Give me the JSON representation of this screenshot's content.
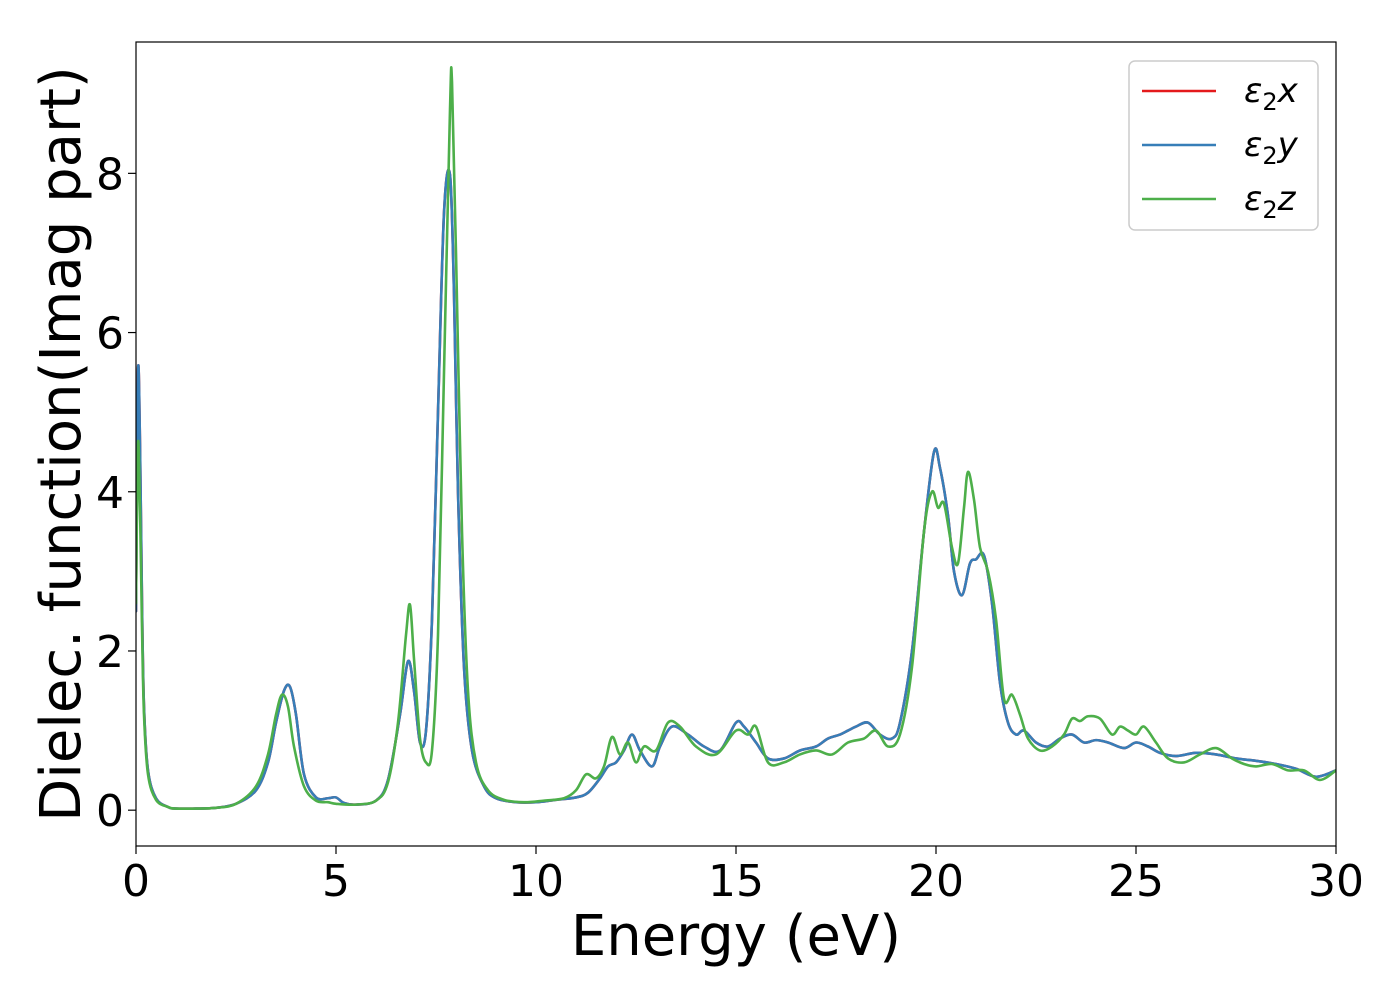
{
  "chart_data": {
    "type": "line",
    "xlabel": "Energy (eV)",
    "ylabel": "Dielec. function(Imag part)",
    "xlim": [
      0,
      30
    ],
    "ylim": [
      -0.45,
      9.65
    ],
    "xticks": [
      0,
      5,
      10,
      15,
      20,
      25,
      30
    ],
    "yticks": [
      0,
      2,
      4,
      6,
      8
    ],
    "grid": false,
    "legend_position": "top-right",
    "series": [
      {
        "name": "ε2x",
        "legend_main": "ε",
        "legend_sub": "2",
        "legend_axis": "x",
        "color": "#e41a1c",
        "x": [
          0.0,
          0.05,
          0.1,
          0.15,
          0.2,
          0.3,
          0.5,
          0.8,
          1.0,
          1.5,
          2.0,
          2.5,
          3.0,
          3.3,
          3.5,
          3.7,
          3.85,
          4.0,
          4.2,
          4.5,
          4.8,
          5.0,
          5.2,
          5.5,
          6.0,
          6.3,
          6.6,
          6.8,
          6.95,
          7.1,
          7.25,
          7.4,
          7.55,
          7.7,
          7.85,
          7.95,
          8.05,
          8.2,
          8.4,
          8.7,
          9.0,
          9.5,
          10.0,
          10.5,
          11.0,
          11.3,
          11.6,
          11.8,
          12.0,
          12.2,
          12.4,
          12.6,
          12.9,
          13.1,
          13.4,
          13.8,
          14.2,
          14.6,
          15.0,
          15.2,
          15.5,
          15.8,
          16.2,
          16.6,
          17.0,
          17.3,
          17.6,
          17.8,
          18.0,
          18.3,
          18.6,
          18.9,
          19.1,
          19.4,
          19.7,
          19.95,
          20.1,
          20.3,
          20.45,
          20.65,
          20.85,
          21.0,
          21.2,
          21.4,
          21.6,
          21.8,
          22.0,
          22.2,
          22.5,
          22.8,
          23.1,
          23.4,
          23.7,
          24.0,
          24.3,
          24.7,
          25.0,
          25.3,
          25.6,
          26.0,
          26.5,
          27.0,
          27.5,
          28.0,
          28.5,
          29.0,
          29.5,
          30.0
        ],
        "y": [
          2.5,
          5.5,
          4.6,
          2.6,
          1.3,
          0.5,
          0.15,
          0.04,
          0.02,
          0.02,
          0.03,
          0.08,
          0.25,
          0.6,
          1.1,
          1.5,
          1.55,
          1.2,
          0.45,
          0.16,
          0.15,
          0.16,
          0.09,
          0.07,
          0.12,
          0.38,
          1.2,
          1.87,
          1.5,
          0.85,
          1.0,
          2.4,
          5.0,
          7.5,
          7.98,
          6.5,
          4.0,
          1.8,
          0.75,
          0.3,
          0.15,
          0.1,
          0.1,
          0.13,
          0.16,
          0.22,
          0.4,
          0.55,
          0.6,
          0.75,
          0.95,
          0.75,
          0.55,
          0.8,
          1.05,
          0.95,
          0.8,
          0.75,
          1.1,
          1.05,
          0.85,
          0.65,
          0.65,
          0.75,
          0.8,
          0.9,
          0.95,
          1.0,
          1.05,
          1.1,
          0.95,
          0.9,
          1.1,
          2.0,
          3.5,
          4.5,
          4.3,
          3.7,
          3.0,
          2.7,
          3.1,
          3.15,
          3.2,
          2.6,
          1.6,
          1.1,
          0.95,
          1.0,
          0.85,
          0.8,
          0.9,
          0.95,
          0.85,
          0.88,
          0.85,
          0.78,
          0.85,
          0.8,
          0.72,
          0.68,
          0.72,
          0.7,
          0.65,
          0.62,
          0.58,
          0.52,
          0.42,
          0.5
        ]
      },
      {
        "name": "ε2y",
        "legend_main": "ε",
        "legend_sub": "2",
        "legend_axis": "y",
        "color": "#377eb8",
        "x": [
          0.0,
          0.05,
          0.1,
          0.15,
          0.2,
          0.3,
          0.5,
          0.8,
          1.0,
          1.5,
          2.0,
          2.5,
          3.0,
          3.3,
          3.5,
          3.7,
          3.85,
          4.0,
          4.2,
          4.5,
          4.8,
          5.0,
          5.2,
          5.5,
          6.0,
          6.3,
          6.6,
          6.8,
          6.95,
          7.1,
          7.25,
          7.4,
          7.55,
          7.7,
          7.85,
          7.95,
          8.05,
          8.2,
          8.4,
          8.7,
          9.0,
          9.5,
          10.0,
          10.5,
          11.0,
          11.3,
          11.6,
          11.8,
          12.0,
          12.2,
          12.4,
          12.6,
          12.9,
          13.1,
          13.4,
          13.8,
          14.2,
          14.6,
          15.0,
          15.2,
          15.5,
          15.8,
          16.2,
          16.6,
          17.0,
          17.3,
          17.6,
          17.8,
          18.0,
          18.3,
          18.6,
          18.9,
          19.1,
          19.4,
          19.7,
          19.95,
          20.1,
          20.3,
          20.45,
          20.65,
          20.85,
          21.0,
          21.2,
          21.4,
          21.6,
          21.8,
          22.0,
          22.2,
          22.5,
          22.8,
          23.1,
          23.4,
          23.7,
          24.0,
          24.3,
          24.7,
          25.0,
          25.3,
          25.6,
          26.0,
          26.5,
          27.0,
          27.5,
          28.0,
          28.5,
          29.0,
          29.5,
          30.0
        ],
        "y": [
          2.5,
          5.5,
          4.6,
          2.6,
          1.3,
          0.5,
          0.15,
          0.04,
          0.02,
          0.02,
          0.03,
          0.08,
          0.25,
          0.6,
          1.1,
          1.5,
          1.55,
          1.2,
          0.45,
          0.16,
          0.15,
          0.16,
          0.09,
          0.07,
          0.12,
          0.38,
          1.2,
          1.87,
          1.5,
          0.85,
          1.0,
          2.4,
          5.0,
          7.5,
          7.98,
          6.5,
          4.0,
          1.8,
          0.75,
          0.3,
          0.15,
          0.1,
          0.1,
          0.13,
          0.16,
          0.22,
          0.4,
          0.55,
          0.6,
          0.75,
          0.95,
          0.75,
          0.55,
          0.8,
          1.05,
          0.95,
          0.8,
          0.75,
          1.1,
          1.05,
          0.85,
          0.65,
          0.65,
          0.75,
          0.8,
          0.9,
          0.95,
          1.0,
          1.05,
          1.1,
          0.95,
          0.9,
          1.1,
          2.0,
          3.5,
          4.5,
          4.3,
          3.7,
          3.0,
          2.7,
          3.1,
          3.15,
          3.2,
          2.6,
          1.6,
          1.1,
          0.95,
          1.0,
          0.85,
          0.8,
          0.9,
          0.95,
          0.85,
          0.88,
          0.85,
          0.78,
          0.85,
          0.8,
          0.72,
          0.68,
          0.72,
          0.7,
          0.65,
          0.62,
          0.58,
          0.52,
          0.42,
          0.5
        ]
      },
      {
        "name": "ε2z",
        "legend_main": "ε",
        "legend_sub": "2",
        "legend_axis": "z",
        "color": "#4daf4a",
        "x": [
          0.0,
          0.05,
          0.1,
          0.15,
          0.2,
          0.3,
          0.5,
          0.8,
          1.0,
          1.5,
          2.0,
          2.5,
          3.0,
          3.3,
          3.5,
          3.65,
          3.8,
          3.95,
          4.2,
          4.5,
          4.8,
          5.0,
          5.5,
          6.0,
          6.3,
          6.55,
          6.75,
          6.85,
          6.95,
          7.1,
          7.25,
          7.4,
          7.55,
          7.7,
          7.85,
          7.9,
          8.0,
          8.15,
          8.3,
          8.5,
          8.8,
          9.2,
          9.7,
          10.2,
          10.7,
          11.0,
          11.25,
          11.5,
          11.7,
          11.9,
          12.1,
          12.3,
          12.5,
          12.7,
          13.0,
          13.3,
          13.6,
          14.0,
          14.5,
          15.0,
          15.3,
          15.5,
          15.8,
          16.2,
          16.6,
          17.0,
          17.4,
          17.8,
          18.2,
          18.5,
          18.8,
          19.1,
          19.4,
          19.7,
          19.9,
          20.05,
          20.2,
          20.4,
          20.55,
          20.7,
          20.8,
          20.95,
          21.1,
          21.3,
          21.5,
          21.7,
          21.9,
          22.1,
          22.3,
          22.6,
          22.9,
          23.2,
          23.4,
          23.6,
          23.8,
          24.1,
          24.4,
          24.6,
          24.8,
          25.0,
          25.2,
          25.5,
          25.8,
          26.2,
          26.6,
          27.0,
          27.4,
          27.7,
          28.0,
          28.4,
          28.8,
          29.2,
          29.6,
          30.0
        ],
        "y": [
          2.6,
          4.6,
          3.8,
          2.3,
          1.2,
          0.45,
          0.13,
          0.04,
          0.02,
          0.02,
          0.03,
          0.08,
          0.3,
          0.7,
          1.2,
          1.45,
          1.3,
          0.8,
          0.3,
          0.12,
          0.1,
          0.08,
          0.07,
          0.12,
          0.35,
          1.1,
          2.2,
          2.58,
          1.9,
          0.9,
          0.6,
          0.75,
          2.2,
          5.5,
          8.8,
          9.15,
          7.0,
          3.5,
          1.5,
          0.6,
          0.25,
          0.13,
          0.1,
          0.12,
          0.15,
          0.25,
          0.45,
          0.4,
          0.55,
          0.92,
          0.7,
          0.85,
          0.6,
          0.8,
          0.75,
          1.1,
          1.05,
          0.8,
          0.7,
          1.0,
          0.95,
          1.05,
          0.6,
          0.6,
          0.7,
          0.75,
          0.7,
          0.85,
          0.9,
          1.0,
          0.8,
          0.95,
          1.8,
          3.5,
          4.0,
          3.8,
          3.85,
          3.3,
          3.1,
          3.8,
          4.25,
          3.9,
          3.3,
          3.0,
          2.4,
          1.4,
          1.45,
          1.2,
          0.9,
          0.75,
          0.8,
          0.95,
          1.15,
          1.12,
          1.18,
          1.15,
          0.95,
          1.05,
          1.0,
          0.95,
          1.05,
          0.85,
          0.65,
          0.6,
          0.7,
          0.78,
          0.65,
          0.58,
          0.55,
          0.58,
          0.5,
          0.5,
          0.38,
          0.5
        ]
      }
    ]
  }
}
